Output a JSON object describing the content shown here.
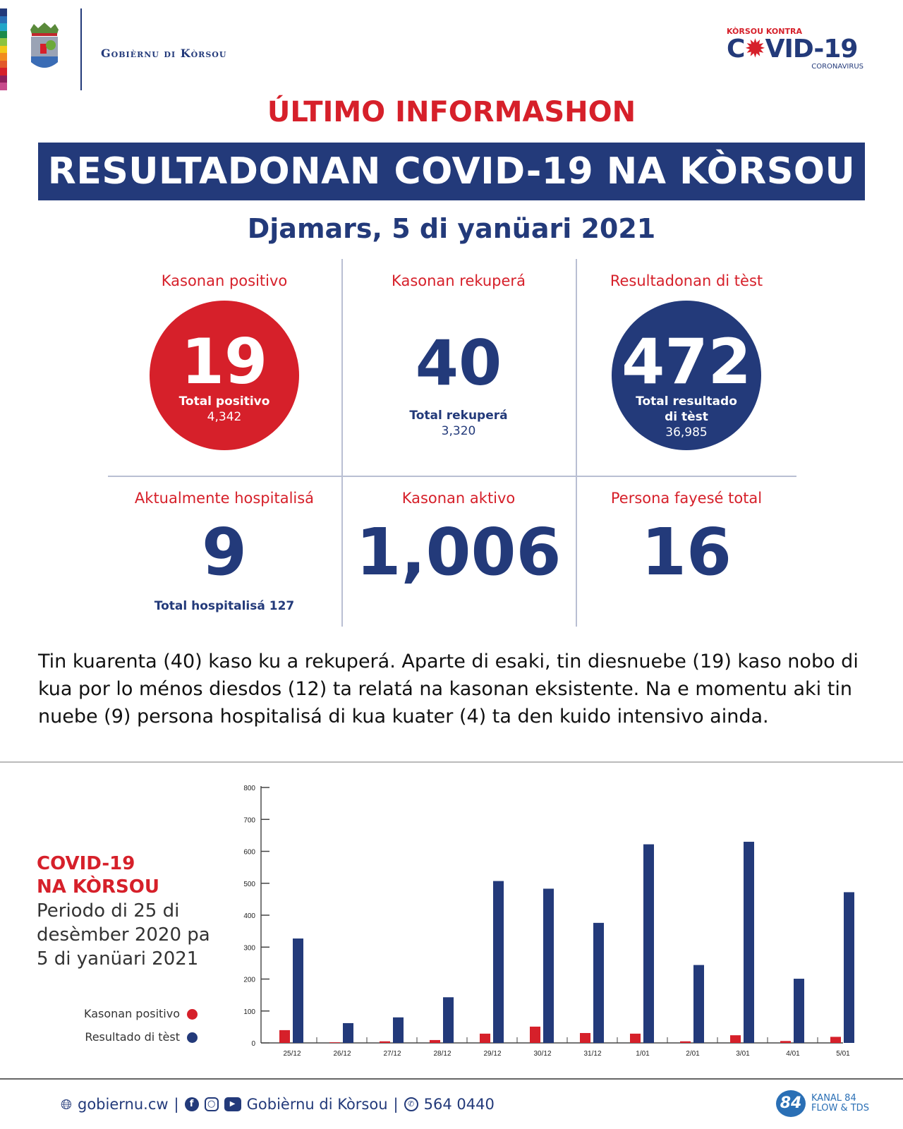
{
  "header": {
    "org": "Gobièrnu di Kòrsou",
    "campaign_top": "KÒRSOU KONTRA",
    "campaign_main_pre": "C",
    "campaign_main_post": "VID-19",
    "campaign_sub": "CORONAVIRUS",
    "stripe_colors": [
      "#233a7a",
      "#2a6fb5",
      "#22a6c8",
      "#1a8a4a",
      "#8cc33f",
      "#f2c919",
      "#f28c1e",
      "#e2592a",
      "#d6202a",
      "#8e1f5c",
      "#c84b8c"
    ]
  },
  "title": "ÚLTIMO INFORMASHON",
  "banner": "RESULTADONAN COVID-19 NA KÒRSOU",
  "date": "Djamars, 5 di yanüari 2021",
  "stats": {
    "positive": {
      "label": "Kasonan positivo",
      "value": "19",
      "sub1": "Total positivo",
      "sub2": "4,342"
    },
    "recovered": {
      "label": "Kasonan rekuperá",
      "value": "40",
      "sub1": "Total rekuperá",
      "sub2": "3,320"
    },
    "tests": {
      "label": "Resultadonan di tèst",
      "value": "472",
      "sub1": "Total resultado",
      "sub2": "di tèst",
      "sub3": "36,985"
    },
    "hospital": {
      "label": "Aktualmente hospitalisá",
      "value": "9",
      "sub": "Total hospitalisá 127"
    },
    "active": {
      "label": "Kasonan aktivo",
      "value": "1,006"
    },
    "deaths": {
      "label": "Persona fayesé total",
      "value": "16"
    }
  },
  "paragraph": "Tin kuarenta (40) kaso ku a rekuperá. Aparte di esaki, tin diesnuebe (19) kaso nobo di kua por lo ménos diesdos (12) ta relatá na kasonan eksistente. Na e momentu aki tin nuebe (9) persona hospitalisá di kua kuater (4) ta den kuido intensivo ainda.",
  "chart_side": {
    "title1": "COVID-19",
    "title2": "NA KÒRSOU",
    "period": "Periodo di 25 di desèmber 2020 pa 5 di yanüari 2021"
  },
  "chart_data": {
    "type": "bar",
    "categories": [
      "25/12",
      "26/12",
      "27/12",
      "28/12",
      "29/12",
      "30/12",
      "31/12",
      "1/01",
      "2/01",
      "3/01",
      "4/01",
      "5/01"
    ],
    "series": [
      {
        "name": "Kasonan positivo",
        "color": "#d6202a",
        "values": [
          40,
          2,
          5,
          9,
          29,
          51,
          31,
          29,
          5,
          24,
          6,
          19
        ]
      },
      {
        "name": "Resultado di tèst",
        "color": "#233a7a",
        "values": [
          327,
          62,
          80,
          143,
          507,
          483,
          376,
          622,
          244,
          630,
          201,
          472
        ]
      }
    ],
    "ylim": [
      0,
      800
    ],
    "yticks": [
      "0",
      "100",
      "200",
      "300",
      "400",
      "500",
      "600",
      "700",
      "800"
    ],
    "grid": false,
    "legend": "left"
  },
  "footer": {
    "web": "gobiernu.cw",
    "social": "Gobièrnu di Kòrsou",
    "phone": "564 0440",
    "sep": "|",
    "kanal_badge": "84",
    "kanal_name": "KANAL 84",
    "kanal_sub": "FLOW & TDS"
  }
}
